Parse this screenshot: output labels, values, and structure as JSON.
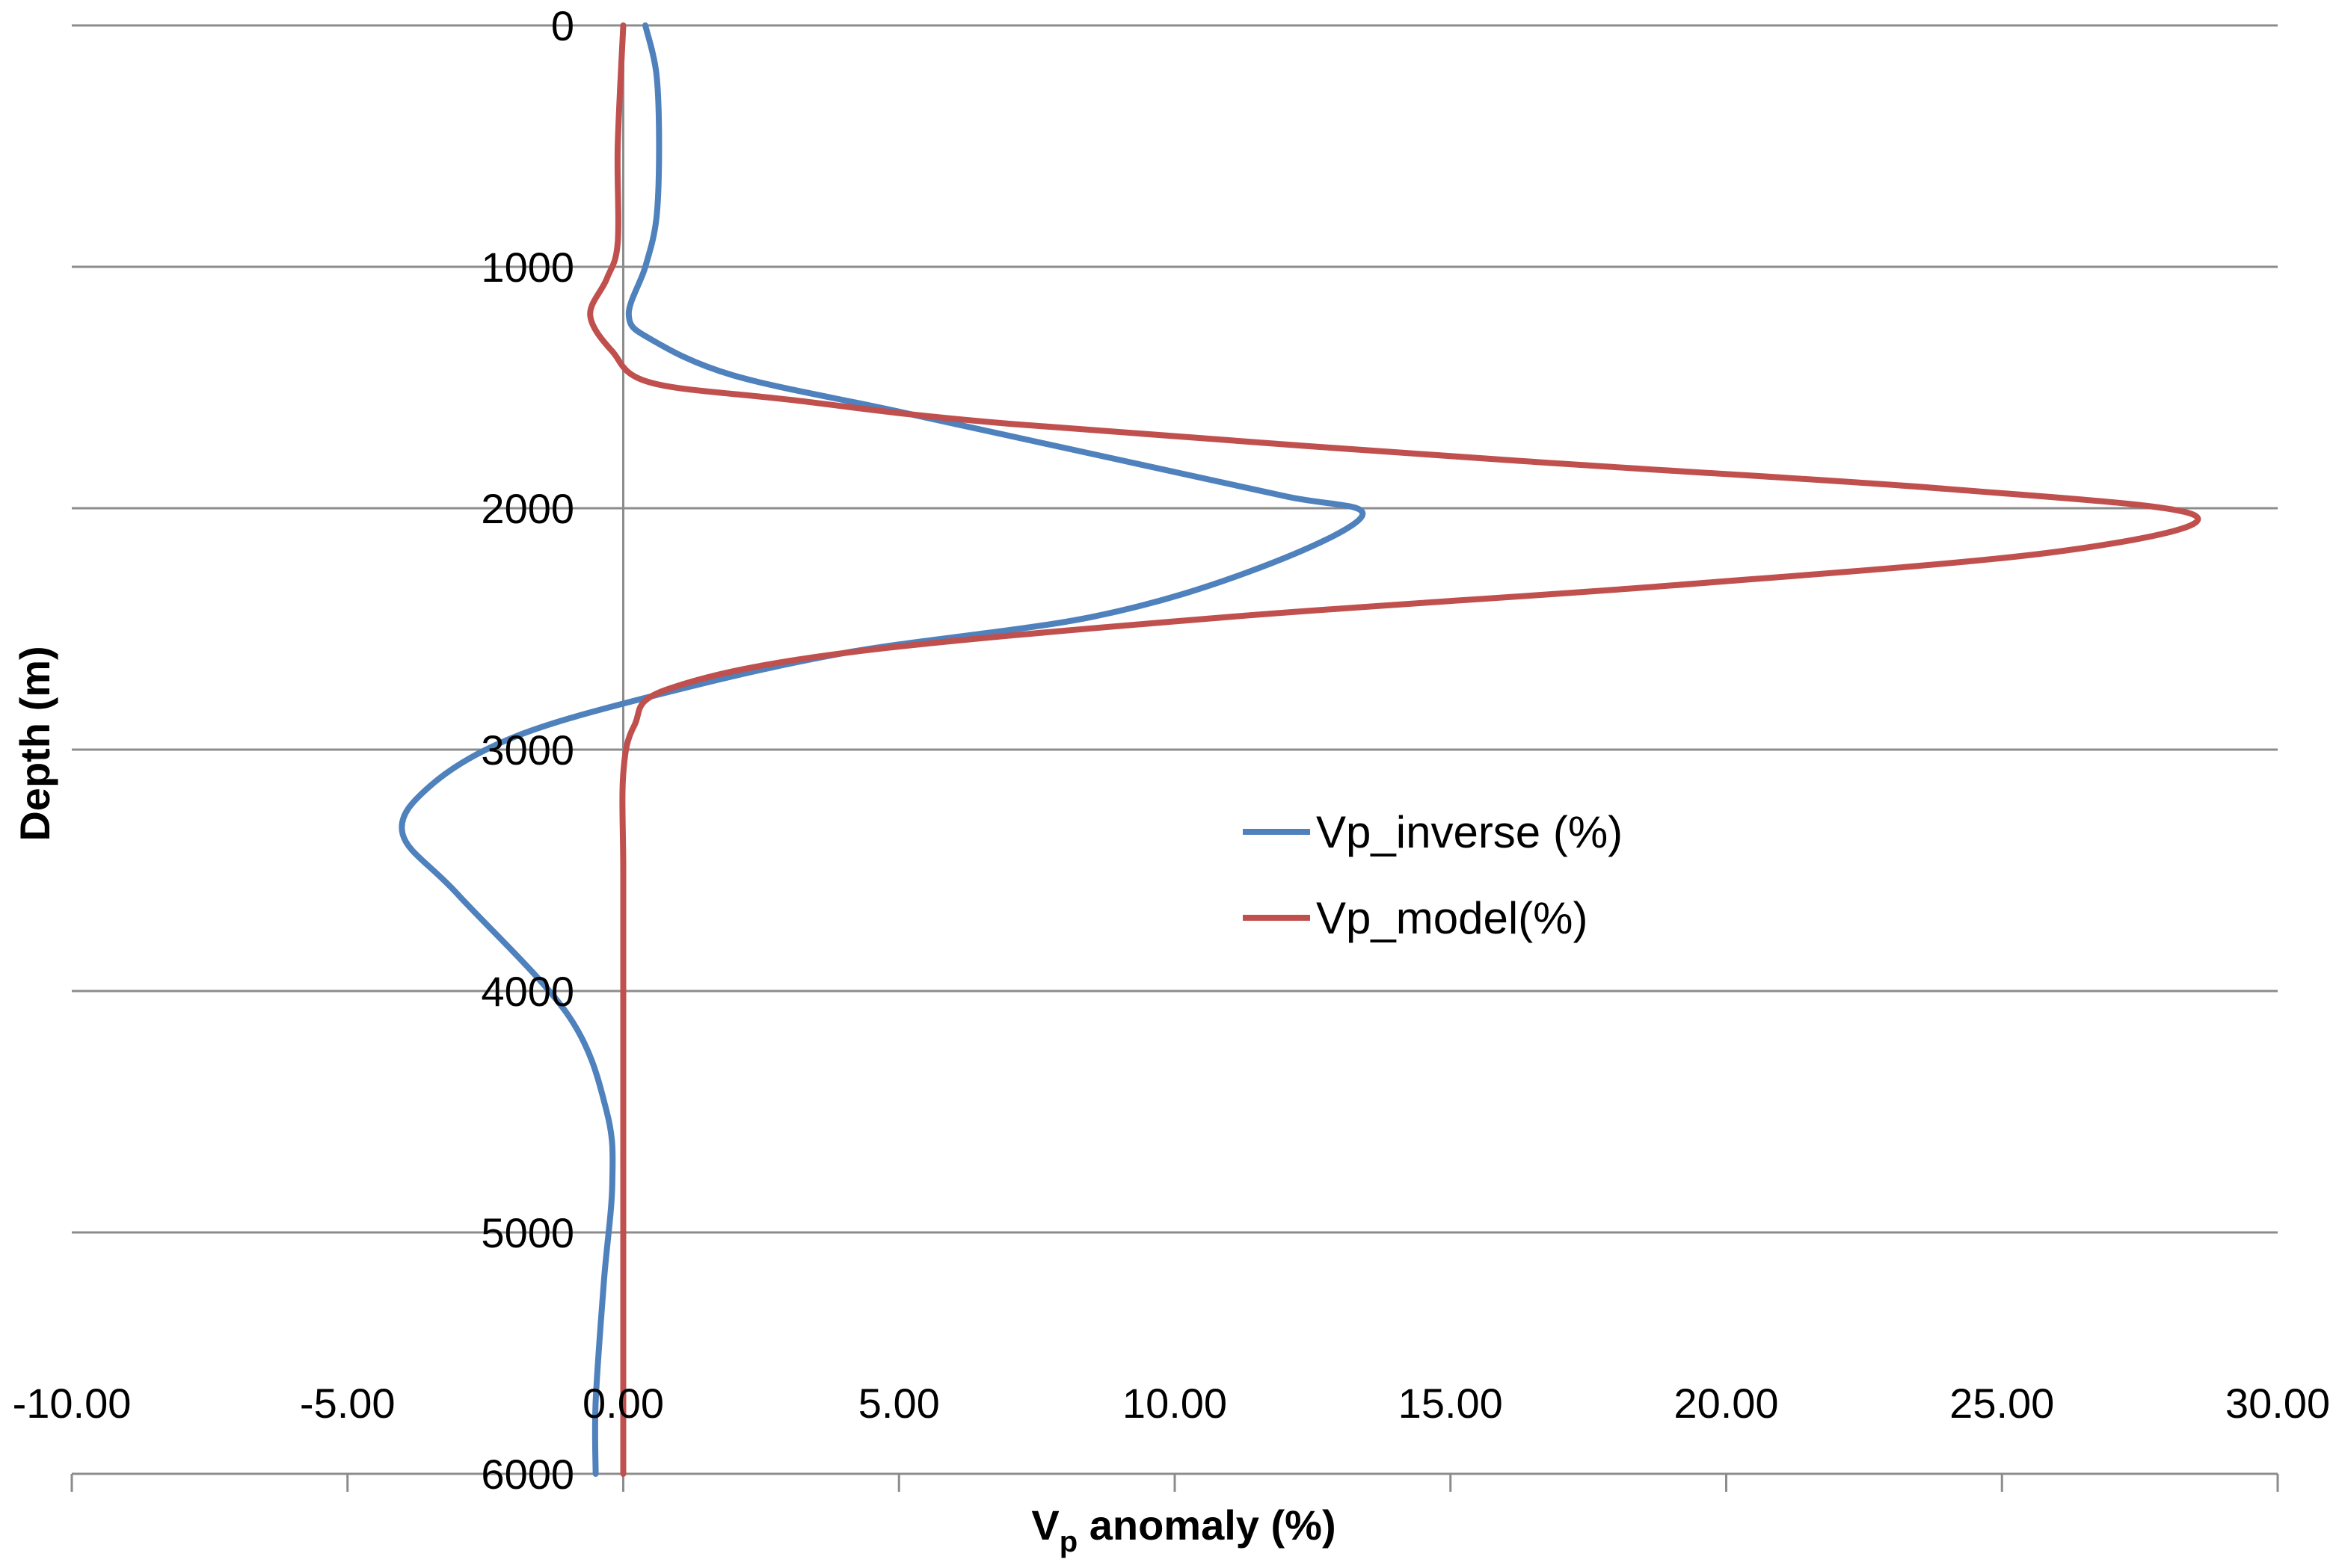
{
  "chart_data": {
    "type": "line",
    "title": "",
    "xlabel": {
      "main": "V",
      "sub": "p",
      "rest": " anomaly (%)"
    },
    "ylabel": "Depth (m)",
    "xlim": [
      -10,
      30
    ],
    "ylim": [
      0,
      6000
    ],
    "y_inverted": true,
    "x_ticks": [
      -10,
      -5,
      0,
      5,
      10,
      15,
      20,
      25,
      30
    ],
    "x_tick_labels": [
      "-10.00",
      "-5.00",
      "0.00",
      "5.00",
      "10.00",
      "15.00",
      "20.00",
      "25.00",
      "30.00"
    ],
    "y_ticks": [
      0,
      1000,
      2000,
      3000,
      4000,
      5000,
      6000
    ],
    "y_tick_labels": [
      "0",
      "1000",
      "2000",
      "3000",
      "4000",
      "5000",
      "6000"
    ],
    "grid": "horizontal",
    "legend_position": "center-right",
    "series": [
      {
        "name": "Vp_inverse (%)",
        "color": "#4F81BD",
        "points": [
          [
            0.4,
            0
          ],
          [
            0.6,
            200
          ],
          [
            0.65,
            500
          ],
          [
            0.6,
            800
          ],
          [
            0.4,
            1000
          ],
          [
            0.1,
            1200
          ],
          [
            0.5,
            1300
          ],
          [
            2.0,
            1450
          ],
          [
            5.0,
            1600
          ],
          [
            9.0,
            1800
          ],
          [
            12.0,
            1950
          ],
          [
            13.4,
            2030
          ],
          [
            11.5,
            2250
          ],
          [
            8.5,
            2450
          ],
          [
            4.0,
            2600
          ],
          [
            0.5,
            2780
          ],
          [
            -2.0,
            2950
          ],
          [
            -3.5,
            3150
          ],
          [
            -4.0,
            3350
          ],
          [
            -3.0,
            3600
          ],
          [
            -1.0,
            4100
          ],
          [
            -0.3,
            4500
          ],
          [
            -0.2,
            4800
          ],
          [
            -0.35,
            5200
          ],
          [
            -0.5,
            5700
          ],
          [
            -0.5,
            6000
          ]
        ]
      },
      {
        "name": "Vp_model(%)",
        "color": "#C0504D",
        "points": [
          [
            0,
            0
          ],
          [
            -0.1,
            500
          ],
          [
            -0.1,
            900
          ],
          [
            -0.3,
            1050
          ],
          [
            -0.6,
            1200
          ],
          [
            -0.2,
            1350
          ],
          [
            0.5,
            1480
          ],
          [
            3.0,
            1550
          ],
          [
            7.0,
            1650
          ],
          [
            16.0,
            1800
          ],
          [
            24.0,
            1920
          ],
          [
            28.5,
            2030
          ],
          [
            26.0,
            2180
          ],
          [
            19.0,
            2320
          ],
          [
            11.0,
            2450
          ],
          [
            4.0,
            2600
          ],
          [
            0.8,
            2750
          ],
          [
            0.2,
            2900
          ],
          [
            0,
            3100
          ],
          [
            0,
            3500
          ],
          [
            0,
            4000
          ],
          [
            0,
            5000
          ],
          [
            0,
            6000
          ]
        ]
      }
    ]
  }
}
